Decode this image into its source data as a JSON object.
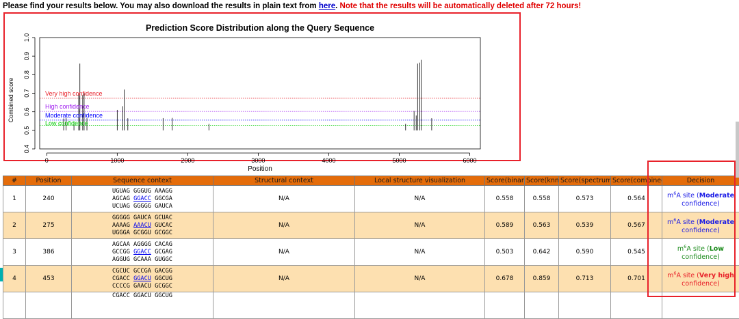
{
  "notice": {
    "prefix": "Please find your results below. You may also download the results in plain text from ",
    "link": "here",
    "dot": ".",
    "warning": "Note that the results will be automatically deleted after 72 hours!"
  },
  "chart_data": {
    "type": "bar",
    "title": "Prediction Score Distribution along the Query Sequence",
    "xlabel": "Position",
    "ylabel": "Combined score",
    "xlim": [
      -100,
      6150
    ],
    "ylim": [
      0.4,
      1.0
    ],
    "xticks": [
      0,
      1000,
      2000,
      3000,
      4000,
      5000,
      6000
    ],
    "yticks": [
      "0.4",
      "0.5",
      "0.6",
      "0.7",
      "0.8",
      "0.9",
      "1.0"
    ],
    "baseline": 0.5,
    "thresholds": [
      {
        "label": "Very high confidence",
        "value": 0.673,
        "color": "#e8212a"
      },
      {
        "label": "High confidence",
        "value": 0.602,
        "color": "#a020f0"
      },
      {
        "label": "Moderate confidence",
        "value": 0.555,
        "color": "#0000ff"
      },
      {
        "label": "Low confidence",
        "value": 0.527,
        "color": "#00cc00"
      }
    ],
    "x": [
      240,
      275,
      386,
      453,
      470,
      510,
      530,
      570,
      1000,
      1080,
      1100,
      1150,
      1650,
      1780,
      2300,
      5090,
      5210,
      5240,
      5260,
      5290,
      5310,
      5460
    ],
    "y": [
      0.564,
      0.567,
      0.545,
      0.701,
      0.86,
      0.69,
      0.7,
      0.565,
      0.61,
      0.63,
      0.72,
      0.565,
      0.566,
      0.567,
      0.535,
      0.535,
      0.605,
      0.58,
      0.86,
      0.865,
      0.88,
      0.565
    ]
  },
  "table": {
    "headers": [
      "#",
      "Position",
      "Sequence context",
      "Structural context",
      "Local structure visualization",
      "Score(binary)",
      "Score(knn)",
      "Score(spectrum)",
      "Score(combined)",
      "Decision"
    ],
    "rows": [
      {
        "num": "1",
        "position": "240",
        "seq": [
          [
            "UGUAG GGGUG AAAGG"
          ],
          [
            "AGCAG ",
            "GGACC",
            " GGCGA"
          ],
          [
            "UCUAG GGGGG GAUCA"
          ]
        ],
        "structural": "N/A",
        "local": "N/A",
        "binary": "0.558",
        "knn": "0.558",
        "spectrum": "0.573",
        "combined": "0.564",
        "decision": {
          "pre": "m",
          "sup": "6",
          "mid": "A site (",
          "level": "Moderate",
          "post": " confidence)",
          "color": "#1a1ae6"
        }
      },
      {
        "num": "2",
        "position": "275",
        "seq": [
          [
            "GGGGG GAUCA GCUAC"
          ],
          [
            "AAAAG ",
            "AAACU",
            " GUCAC"
          ],
          [
            "UGGGA GCGGU GCGGC"
          ]
        ],
        "structural": "N/A",
        "local": "N/A",
        "binary": "0.589",
        "knn": "0.563",
        "spectrum": "0.539",
        "combined": "0.567",
        "decision": {
          "pre": "m",
          "sup": "6",
          "mid": "A site (",
          "level": "Moderate",
          "post": " confidence)",
          "color": "#1a1ae6"
        }
      },
      {
        "num": "3",
        "position": "386",
        "seq": [
          [
            "AGCAA AGGGG CACAG"
          ],
          [
            "GCCGG ",
            "GGACC",
            " GCGAG"
          ],
          [
            "AGGUG GCAAA GUGGC"
          ]
        ],
        "structural": "N/A",
        "local": "N/A",
        "binary": "0.503",
        "knn": "0.642",
        "spectrum": "0.590",
        "combined": "0.545",
        "decision": {
          "pre": "m",
          "sup": "6",
          "mid": "A site (",
          "level": "Low",
          "post": " confidence)",
          "color": "#1a8a1a"
        }
      },
      {
        "num": "4",
        "position": "453",
        "seq": [
          [
            "CGCUC GCCGA GACGG"
          ],
          [
            "CGACC ",
            "GGACU",
            " GGCUG"
          ],
          [
            "CCCCG GAACU GCGGC"
          ]
        ],
        "structural": "N/A",
        "local": "N/A",
        "binary": "0.678",
        "knn": "0.859",
        "spectrum": "0.713",
        "combined": "0.701",
        "decision": {
          "pre": "m",
          "sup": "6",
          "mid": "A site (",
          "level": "Very high",
          "post": " confidence)",
          "color": "#e8212a"
        }
      }
    ],
    "partial_row_seq": "CGACC GGACU GGCUG"
  }
}
